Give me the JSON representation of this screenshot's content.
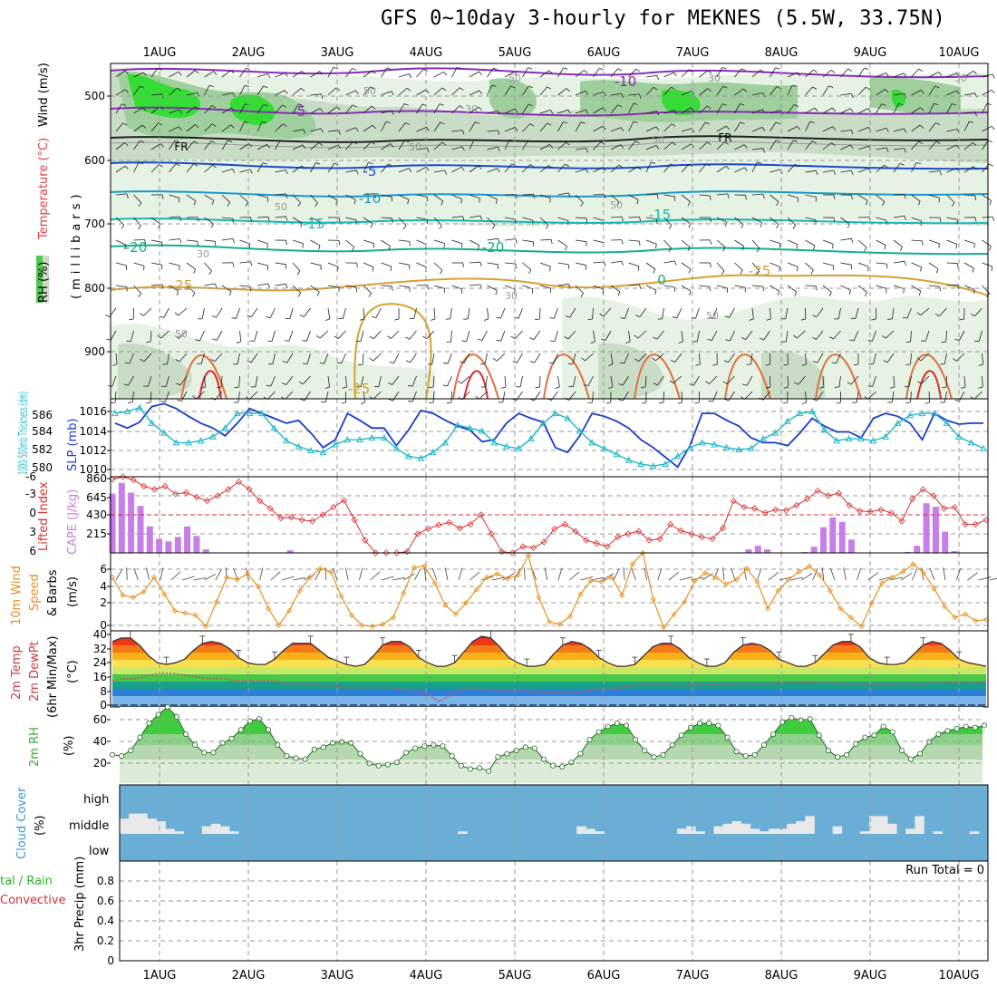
{
  "title": "GFS 0~10day 3-hourly for MEKNES (5.5W, 33.75N)",
  "date_labels": [
    "1AUG",
    "2AUG",
    "3AUG",
    "4AUG",
    "5AUG",
    "6AUG",
    "7AUG",
    "8AUG",
    "9AUG",
    "10AUG"
  ],
  "colors": {
    "grid": "#9a9a9a",
    "slp": "#1a3cc8",
    "thickness": "#20b8c8",
    "lifted_index": "#d83030",
    "cape": "#c77ee8",
    "wind_speed": "#e89020",
    "dewpoint": "#c8506a",
    "rh_fill": "#4fc84f",
    "cloud_bg": "#6aaed6",
    "cloud_fill": "#e8e8e8",
    "precip_total": "#30b030",
    "precip_conv": "#d83030"
  },
  "panels": {
    "upper_air": {
      "ylabels": [
        "RH (%)",
        "Temperature (°C)",
        "Wind (m/s)"
      ],
      "yaxis_label": "(millibars)",
      "pressure_ticks": [
        "500",
        "600",
        "700",
        "800",
        "900"
      ]
    },
    "slp": {
      "ylabel_left": "1000-500mb Thickness (dm)",
      "ylabel_right": "SLP (mb)",
      "left_ticks": [
        "586",
        "584",
        "582",
        "580"
      ],
      "right_ticks": [
        "1016",
        "1014",
        "1012",
        "1010"
      ]
    },
    "li": {
      "ylabel_left": "Lifted Index",
      "ylabel_right": "CAPE (J/kg)",
      "left_ticks": [
        "-6",
        "-3",
        "0",
        "3",
        "6"
      ],
      "right_ticks": [
        "860",
        "645",
        "430",
        "215"
      ]
    },
    "wind10m": {
      "ylabel": "10m Wind Speed & Barbs",
      "ylabel_parts": [
        "10m Wind",
        "Speed",
        "& Barbs"
      ],
      "unit": "(m/s)",
      "ticks": [
        "6",
        "4",
        "2",
        "0"
      ]
    },
    "temp2m": {
      "ylabel": "2m Temp 2m DewPt (6hr Min/Max)",
      "ylabel_parts": [
        "2m Temp",
        "2m DewPt",
        "(6hr Min/Max)"
      ],
      "unit": "(°C)",
      "ticks": [
        "40",
        "32",
        "24",
        "16",
        "8",
        "0"
      ]
    },
    "rh2m": {
      "ylabel": "2m RH",
      "unit": "(%)",
      "ticks": [
        "60",
        "40",
        "20"
      ]
    },
    "cloud": {
      "ylabel": "Cloud Cover",
      "unit": "(%)",
      "levels": [
        "high",
        "middle",
        "low"
      ]
    },
    "precip": {
      "ylabel_left1": "tal / Rain",
      "ylabel_left2": "Convective",
      "ylabel_right": "3hr Precip (mm)",
      "ticks": [
        "0.8",
        "0.6",
        "0.4",
        "0.2",
        "0"
      ],
      "run_total": "Run Total = 0"
    }
  },
  "contour_labels": {
    "temperature": [
      "-10",
      "-5",
      "FR",
      "-5",
      "-10",
      "-15",
      "-20",
      "-25",
      "-25",
      "5",
      "-5",
      "-10",
      "-15",
      "-20",
      "-25",
      "-10",
      "-5",
      "FR",
      "-5",
      "-10",
      "-15",
      "-20",
      "-25",
      "0"
    ],
    "rh": [
      "50",
      "50",
      "30",
      "50",
      "50",
      "30",
      "50",
      "30",
      "30",
      "50",
      "50",
      "50",
      "30"
    ]
  },
  "chart_data": [
    {
      "type": "line",
      "title": "Sea Level Pressure and 1000-500mb Thickness",
      "ylim_slp": [
        1009,
        1017
      ],
      "ylim_thickness": [
        579.5,
        587.5
      ],
      "series": [
        {
          "name": "SLP (mb)",
          "values": [
            1014.5,
            1014,
            1014.6,
            1016.2,
            1016.5,
            1016,
            1015.2,
            1014.5,
            1014,
            1013.2,
            1014.5,
            1016,
            1015.5,
            1015,
            1014.5,
            1014.8,
            1013.5,
            1012,
            1012.8,
            1015.5,
            1014.8,
            1014,
            1014,
            1012.2,
            1013.8,
            1015.8,
            1015.5,
            1014.8,
            1014.2,
            1013.8,
            1012.6,
            1012.8,
            1014.5,
            1015.5,
            1015,
            1014.6,
            1012,
            1011.5,
            1013.2,
            1015.5,
            1015.2,
            1014.7,
            1014,
            1012.8,
            1012,
            1011,
            1010,
            1012.2,
            1015.5,
            1015.5,
            1014.8,
            1014.2,
            1013,
            1012.5,
            1012.5,
            1012.2,
            1013.5,
            1015,
            1014.2,
            1013.6,
            1013.6,
            1013,
            1015,
            1015.5,
            1015.2,
            1014.5,
            1012.8,
            1015.5,
            1014.8,
            1014.4,
            1014.5,
            1014.5
          ]
        },
        {
          "name": "Thickness (dm)",
          "values": [
            586,
            586.2,
            586.6,
            585,
            584,
            583,
            583,
            583.2,
            583.6,
            584.5,
            586,
            586,
            586,
            584.5,
            583.2,
            582.6,
            582.2,
            582,
            582.8,
            583.3,
            583.3,
            583.5,
            583.5,
            582.4,
            581.6,
            581.4,
            582,
            583,
            584.8,
            584.5,
            584.2,
            583,
            582.6,
            582.4,
            583.4,
            585,
            586,
            585.5,
            584.2,
            583,
            582.4,
            581.8,
            581.2,
            580.8,
            580.6,
            580.8,
            581.6,
            582.5,
            583,
            582.8,
            582.5,
            582.3,
            582.4,
            583.4,
            584,
            585.2,
            586,
            586.2,
            584.3,
            583.2,
            583.4,
            583.4,
            583.2,
            583.6,
            585,
            585.8,
            586,
            586,
            585,
            583.6,
            583,
            582.4
          ]
        }
      ]
    },
    {
      "type": "line",
      "title": "Lifted Index and CAPE",
      "ylim_li": [
        6,
        -6
      ],
      "ylim_cape": [
        0,
        860
      ],
      "series": [
        {
          "name": "Lifted Index",
          "values": [
            -5.6,
            -6,
            -5.5,
            -4.5,
            -4,
            -4.5,
            -3.3,
            -3.5,
            -2.8,
            -2.2,
            -3,
            -4,
            -5.2,
            -4,
            -2.2,
            -1,
            0.5,
            0.4,
            0.8,
            1,
            0,
            -1.2,
            -2.3,
            0.8,
            4,
            6,
            6,
            6,
            5.8,
            3,
            2.2,
            1.6,
            1.2,
            2.1,
            1.5,
            0,
            3,
            5.8,
            6,
            5,
            5.2,
            4.3,
            2.2,
            1.5,
            2.6,
            4,
            4.5,
            5,
            3.5,
            3,
            2.6,
            4,
            3.8,
            1.5,
            2.5,
            3,
            3.5,
            3.8,
            2.1,
            -2.2,
            -1.2,
            -1,
            -0.3,
            -0.8,
            -0.7,
            -1.5,
            -2.5,
            -3.8,
            -3,
            -3.4,
            -1.5,
            -0.6,
            -0.5,
            -0.8,
            -0.3,
            1,
            -2.5,
            -4,
            -3,
            -1,
            -1.2,
            1.5,
            1.5,
            0.8
          ]
        },
        {
          "name": "CAPE (J/kg)",
          "values": [
            670,
            790,
            680,
            530,
            300,
            160,
            130,
            180,
            300,
            190,
            40,
            0,
            0,
            0,
            0,
            0,
            0,
            0,
            0,
            30,
            0,
            0,
            0,
            0,
            0,
            0,
            0,
            0,
            0,
            0,
            0,
            0,
            0,
            0,
            0,
            0,
            0,
            0,
            0,
            0,
            0,
            0,
            0,
            0,
            0,
            0,
            0,
            0,
            0,
            0,
            0,
            0,
            0,
            0,
            0,
            0,
            0,
            0,
            0,
            0,
            0,
            0,
            0,
            0,
            0,
            0,
            0,
            0,
            40,
            80,
            40,
            0,
            0,
            0,
            10,
            70,
            290,
            400,
            350,
            150,
            0,
            0,
            0,
            0,
            0,
            10,
            80,
            560,
            520,
            240,
            20,
            0,
            0,
            0
          ]
        }
      ]
    },
    {
      "type": "line",
      "title": "10m Wind Speed",
      "ylim": [
        0,
        7
      ],
      "series": [
        {
          "name": "Wind speed (m/s)",
          "values": [
            4.8,
            3.2,
            3,
            3.5,
            4.8,
            3.3,
            1.8,
            1.6,
            1.4,
            0.4,
            2.6,
            4.8,
            4.6,
            5.1,
            4,
            2,
            0.5,
            1.8,
            3.6,
            4.8,
            5.6,
            5.3,
            3.1,
            1.4,
            0.5,
            0.4,
            0.6,
            1.2,
            3.4,
            5.7,
            5.8,
            4.3,
            2.3,
            1.5,
            2.5,
            3.7,
            4.8,
            5.1,
            4.7,
            5,
            6.8,
            3,
            0.8,
            0.6,
            1.3,
            3.3,
            4.5,
            4.4,
            4.8,
            3.2,
            6,
            7,
            2.8,
            0.3,
            1.5,
            2.6,
            4.5,
            5.2,
            4.8,
            4.2,
            4.6,
            5.6,
            4.4,
            2,
            3.6,
            4.6,
            5.3,
            5.8,
            5,
            3.6,
            2,
            1.2,
            0.4,
            2.5,
            4.3,
            4.8,
            5.3,
            6,
            5.2,
            3.8,
            2.2,
            1.2,
            1.5,
            0.9,
            1
          ]
        }
      ]
    },
    {
      "type": "area",
      "title": "2m Temperature and Dewpoint",
      "ylim": [
        0,
        42
      ],
      "series": [
        {
          "name": "2m Temp (°C)",
          "values": [
            36,
            38,
            38,
            34,
            28,
            24,
            23,
            24,
            26,
            31,
            35,
            36,
            35,
            32,
            27,
            24,
            23,
            23,
            26,
            31,
            35,
            35,
            35,
            31,
            27,
            25,
            23,
            22,
            23,
            28,
            34,
            36,
            36,
            33,
            27,
            24,
            22,
            22,
            24,
            30,
            36,
            39,
            38,
            33,
            27,
            24,
            22,
            22,
            23,
            29,
            34,
            36,
            35,
            32,
            27,
            24,
            22,
            22,
            23,
            28,
            33,
            35,
            35,
            32,
            27,
            24,
            22,
            22,
            24,
            30,
            34,
            35,
            34,
            31,
            26,
            24,
            22,
            22,
            24,
            29,
            34,
            36,
            36,
            33,
            27,
            24,
            23,
            23,
            24,
            29,
            34,
            36,
            35,
            31,
            26,
            24,
            23,
            22
          ]
        },
        {
          "name": "2m DewPt (°C)",
          "values": [
            14,
            15,
            15,
            17,
            18,
            18,
            17,
            16,
            15,
            15,
            14,
            14,
            14,
            14,
            13,
            12,
            12,
            11,
            11,
            10,
            10,
            10,
            10,
            10,
            9,
            8,
            6,
            2,
            7,
            9,
            9,
            9,
            8,
            8,
            8,
            7,
            7,
            7,
            7,
            8,
            9,
            9,
            10,
            11,
            12,
            12,
            11,
            11,
            12,
            11,
            12,
            12,
            12,
            12,
            12,
            13,
            13,
            13,
            13,
            13,
            12,
            12,
            12,
            12,
            12,
            12,
            12,
            12,
            13,
            13,
            13,
            13,
            13
          ]
        }
      ]
    },
    {
      "type": "area",
      "title": "2m Relative Humidity",
      "ylim": [
        0,
        70
      ],
      "series": [
        {
          "name": "2m RH (%)",
          "values": [
            26,
            25,
            30,
            42,
            55,
            63,
            70,
            61,
            45,
            35,
            28,
            28,
            37,
            41,
            49,
            57,
            59,
            49,
            35,
            25,
            23,
            22,
            31,
            33,
            37,
            38,
            37,
            27,
            18,
            16,
            17,
            19,
            28,
            32,
            34,
            35,
            34,
            25,
            16,
            13,
            14,
            11,
            24,
            27,
            30,
            33,
            32,
            22,
            16,
            15,
            19,
            27,
            40,
            47,
            52,
            55,
            53,
            40,
            30,
            24,
            26,
            35,
            44,
            51,
            55,
            55,
            53,
            42,
            29,
            25,
            26,
            35,
            45,
            56,
            60,
            58,
            59,
            44,
            30,
            24,
            26,
            36,
            42,
            44,
            52,
            47,
            30,
            22,
            27,
            38,
            45,
            48,
            50,
            52,
            51,
            53
          ]
        }
      ]
    },
    {
      "type": "bar",
      "title": "Cloud Cover (middle level)",
      "ylim": [
        0,
        100
      ],
      "series": [
        {
          "name": "Middle cloud (%)",
          "values": [
            60,
            80,
            80,
            60,
            50,
            20,
            10,
            0,
            0,
            30,
            40,
            30,
            10,
            0,
            0,
            0,
            0,
            0,
            0,
            0,
            0,
            0,
            0,
            0,
            0,
            0,
            0,
            0,
            0,
            0,
            0,
            0,
            0,
            0,
            0,
            0,
            0,
            10,
            0,
            0,
            0,
            0,
            0,
            0,
            0,
            0,
            0,
            0,
            0,
            0,
            30,
            20,
            10,
            0,
            0,
            0,
            0,
            0,
            0,
            0,
            0,
            20,
            30,
            10,
            0,
            30,
            40,
            50,
            40,
            20,
            10,
            20,
            20,
            40,
            50,
            70,
            0,
            0,
            30,
            0,
            0,
            10,
            70,
            70,
            40,
            0,
            20,
            70,
            0,
            10,
            0,
            0,
            0,
            10,
            0
          ]
        }
      ]
    },
    {
      "type": "bar",
      "title": "3hr Precipitation",
      "ylim": [
        0,
        0.9
      ],
      "series": [
        {
          "name": "Total / Rain (mm)",
          "values": []
        },
        {
          "name": "Convective (mm)",
          "values": []
        }
      ]
    }
  ]
}
